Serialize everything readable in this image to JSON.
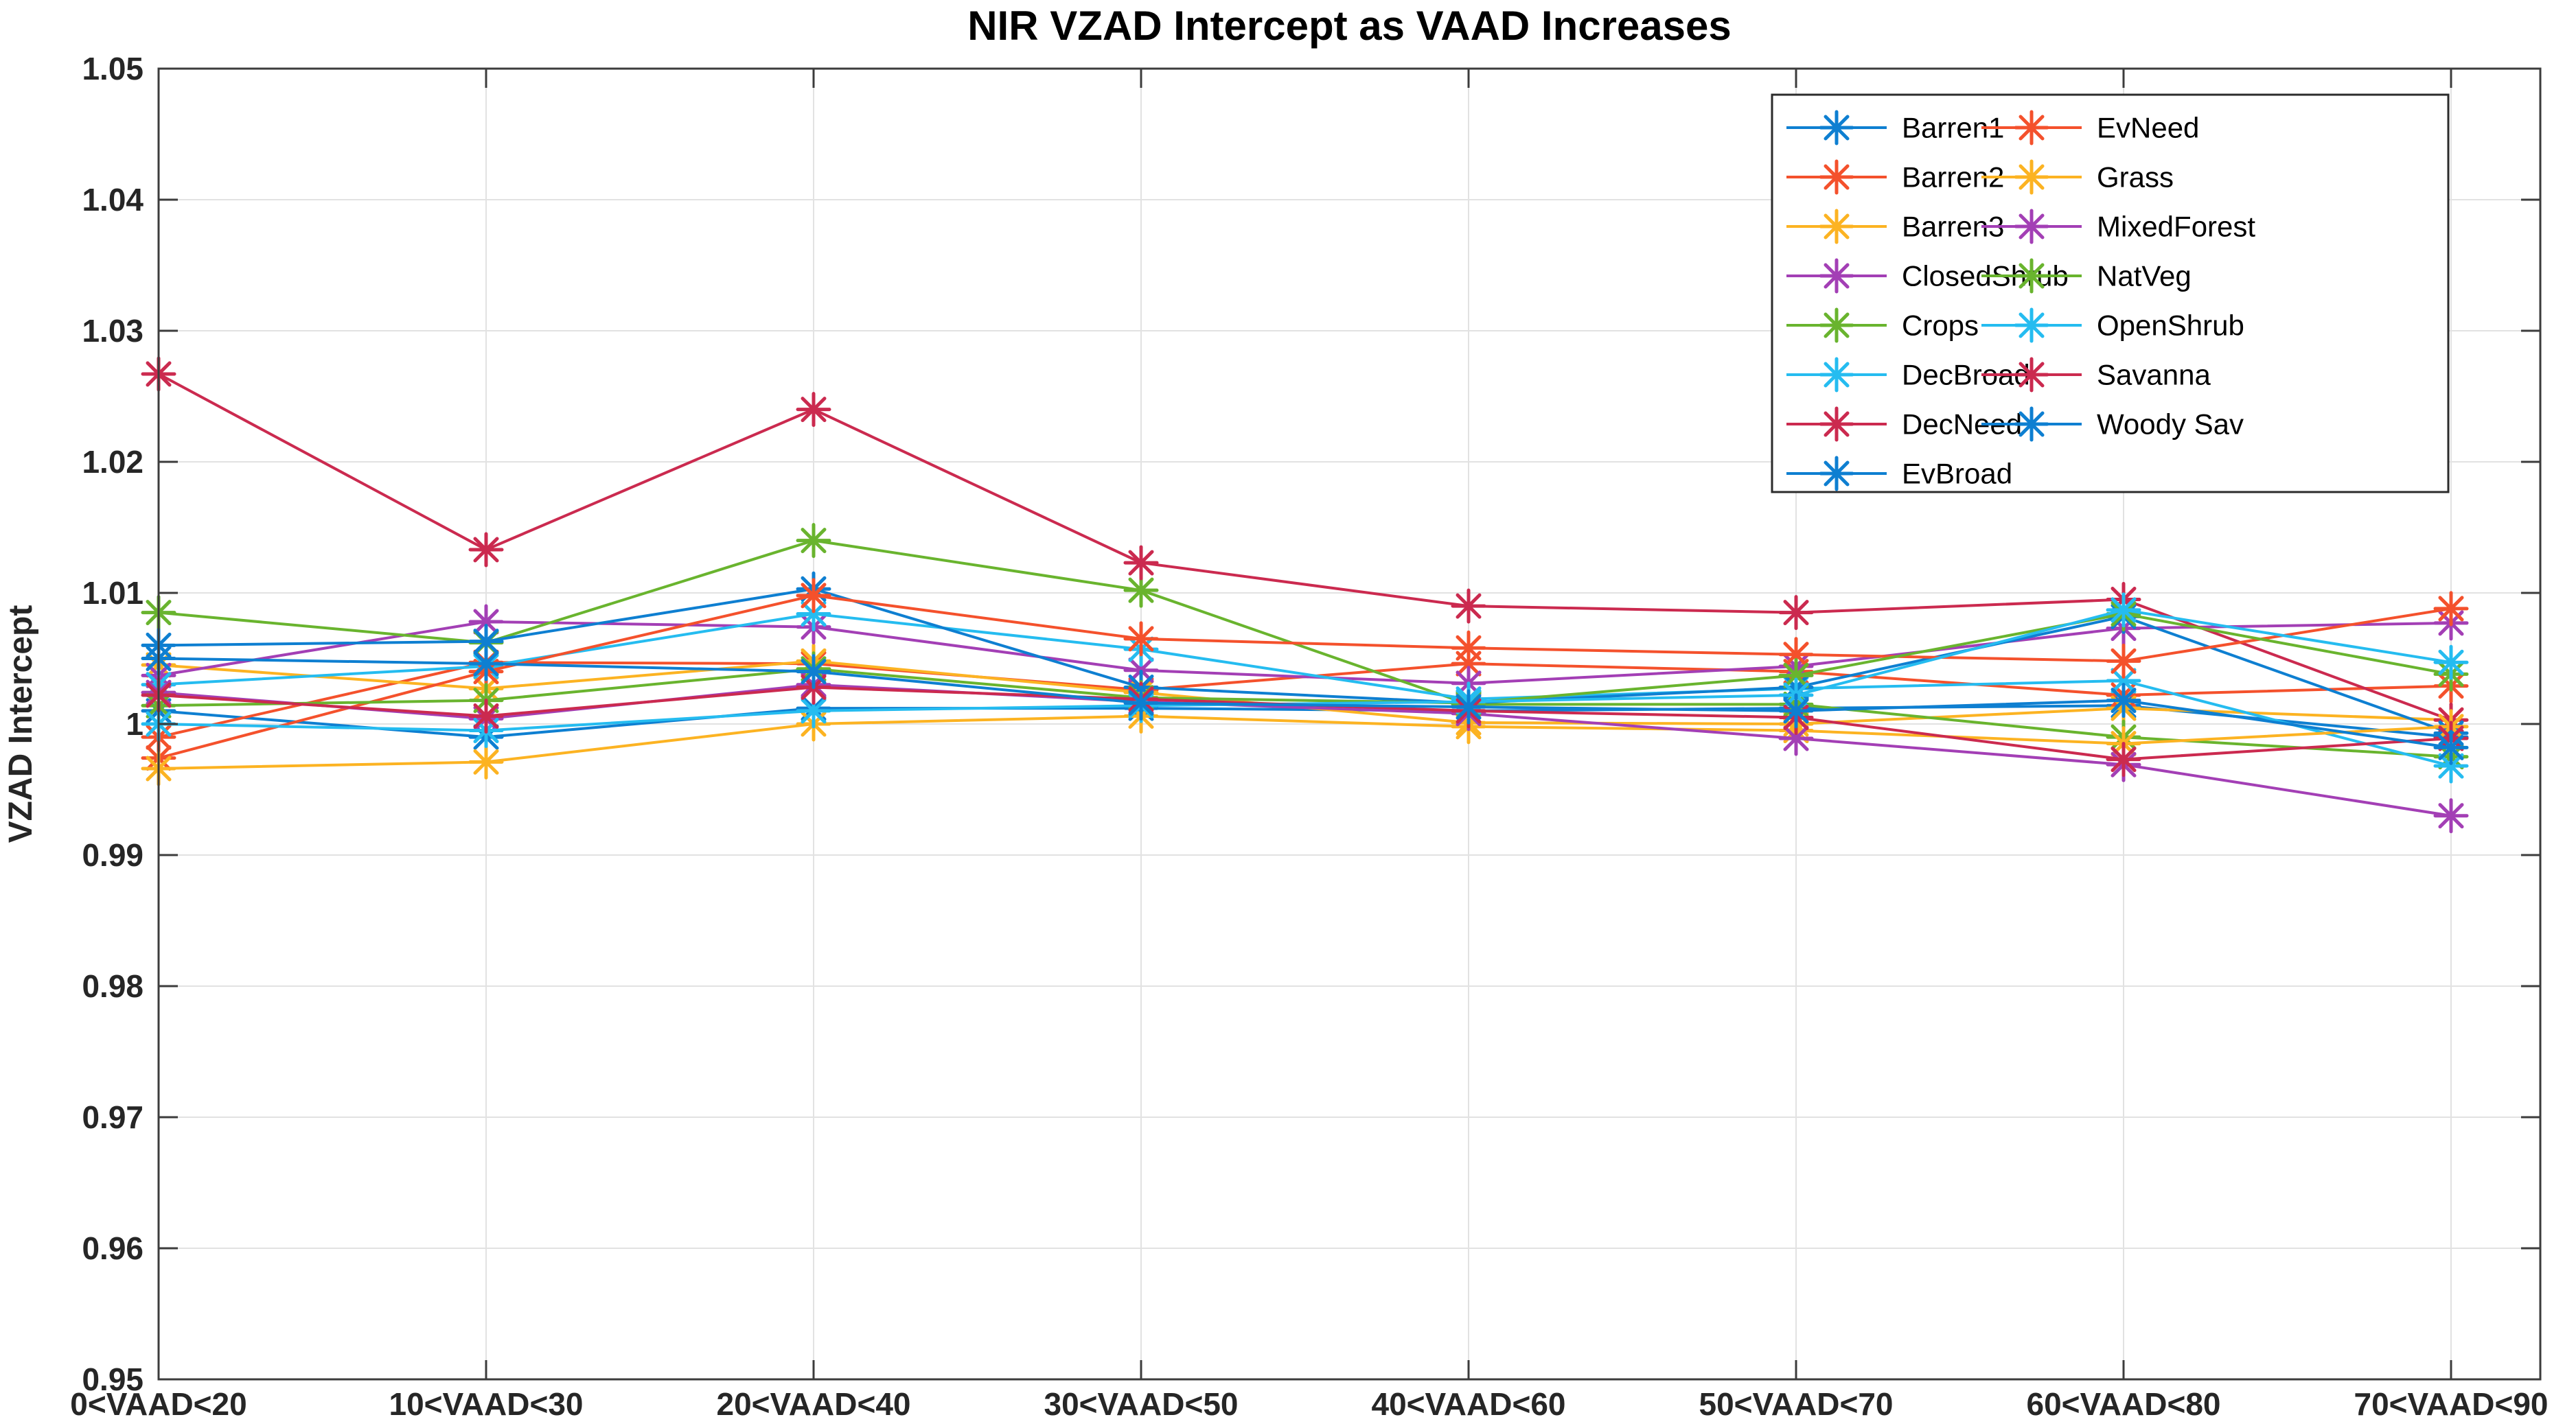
{
  "chart": {
    "title": "NIR VZAD Intercept as VAAD Increases",
    "ylabel": "VZAD Intercept"
  },
  "chart_data": {
    "type": "line",
    "title": "NIR VZAD Intercept as VAAD Increases",
    "xlabel": "",
    "ylabel": "VZAD Intercept",
    "marker": "asterisk",
    "grid": true,
    "legend_position": "upper-right-inside-two-columns",
    "legend_columns": 2,
    "legend_column1": [
      "Barren1",
      "Barren2",
      "Barren3",
      "ClosedShrub",
      "Crops",
      "DecBroad",
      "DecNeed",
      "EvBroad"
    ],
    "legend_column2": [
      "EvNeed",
      "Grass",
      "MixedForest",
      "NatVeg",
      "OpenShrub",
      "Savanna",
      "Woody Sav"
    ],
    "categories": [
      "0<VAAD<20",
      "10<VAAD<30",
      "20<VAAD<40",
      "30<VAAD<50",
      "40<VAAD<60",
      "50<VAAD<70",
      "60<VAAD<80",
      "70<VAAD<90"
    ],
    "ylim": [
      0.95,
      1.05
    ],
    "ytick_step": 0.01,
    "ytick_values": [
      0.95,
      0.96,
      0.97,
      0.98,
      0.99,
      1.0,
      1.01,
      1.02,
      1.03,
      1.04,
      1.05
    ],
    "ytick_labels": [
      "0.95",
      "0.96",
      "0.97",
      "0.98",
      "0.99",
      "1",
      "1.01",
      "1.02",
      "1.03",
      "1.04",
      "1.05"
    ],
    "palette": {
      "blue": "#0E7FD1",
      "orange": "#F4512C",
      "yellow": "#FCB322",
      "purple": "#A33FB5",
      "green": "#69B42E",
      "cyan": "#25BCF0",
      "crimson": "#CB2A4F"
    },
    "axis_color": "#3C3C3C",
    "grid_color": "#E2E2E2",
    "series": [
      {
        "name": "Barren1",
        "color": "#0E7FD1",
        "values": [
          1.001,
          0.999,
          1.0012,
          1.0012,
          1.001,
          1.0012,
          1.0014,
          0.999
        ]
      },
      {
        "name": "Barren2",
        "color": "#F4512C",
        "values": [
          0.999,
          1.0047,
          1.0046,
          1.0026,
          1.0046,
          1.004,
          1.0022,
          1.0029
        ]
      },
      {
        "name": "Barren3",
        "color": "#FCB322",
        "values": [
          1.0045,
          1.0027,
          1.0048,
          1.0024,
          1.0001,
          1.0,
          1.0012,
          1.0003
        ]
      },
      {
        "name": "ClosedShrub",
        "color": "#A33FB5",
        "values": [
          1.0037,
          1.0078,
          1.0074,
          1.0041,
          1.0031,
          1.0044,
          1.0073,
          1.0077
        ]
      },
      {
        "name": "Crops",
        "color": "#69B42E",
        "values": [
          1.0085,
          1.0062,
          1.014,
          1.0102,
          1.0015,
          1.0015,
          0.999,
          0.9975
        ]
      },
      {
        "name": "DecBroad",
        "color": "#25BCF0",
        "values": [
          1.003,
          1.0044,
          1.0084,
          1.0057,
          1.0019,
          1.0027,
          1.0033,
          0.9968
        ]
      },
      {
        "name": "DecNeed",
        "color": "#CB2A4F",
        "values": [
          1.0267,
          1.0133,
          1.024,
          1.0123,
          1.009,
          1.0085,
          1.0095,
          1.0003
        ]
      },
      {
        "name": "EvBroad",
        "color": "#0E7FD1",
        "values": [
          1.006,
          1.0063,
          1.0103,
          1.0028,
          1.0016,
          1.0028,
          1.0082,
          0.9993
        ]
      },
      {
        "name": "EvNeed",
        "color": "#F4512C",
        "values": [
          0.9974,
          1.004,
          1.0098,
          1.0065,
          1.0058,
          1.0053,
          1.0048,
          1.0088
        ]
      },
      {
        "name": "Grass",
        "color": "#FCB322",
        "values": [
          0.9966,
          0.9971,
          1.0,
          1.0006,
          0.9998,
          0.9995,
          0.9985,
          0.9998
        ]
      },
      {
        "name": "MixedForest",
        "color": "#A33FB5",
        "values": [
          1.0024,
          1.0004,
          1.003,
          1.0017,
          1.0008,
          0.9989,
          0.9969,
          0.993
        ]
      },
      {
        "name": "NatVeg",
        "color": "#69B42E",
        "values": [
          1.0014,
          1.0018,
          1.0042,
          1.002,
          1.0016,
          1.0037,
          1.0084,
          1.0038
        ]
      },
      {
        "name": "OpenShrub",
        "color": "#25BCF0",
        "values": [
          1.0,
          0.9995,
          1.001,
          1.0014,
          1.0017,
          1.0022,
          1.0087,
          1.0047
        ]
      },
      {
        "name": "Savanna",
        "color": "#CB2A4F",
        "values": [
          1.0022,
          1.0006,
          1.0028,
          1.0019,
          1.001,
          1.0005,
          0.9973,
          0.9989
        ]
      },
      {
        "name": "Woody Sav",
        "color": "#0E7FD1",
        "values": [
          1.005,
          1.0046,
          1.004,
          1.0016,
          1.0013,
          1.001,
          1.0018,
          0.9982
        ]
      }
    ]
  }
}
